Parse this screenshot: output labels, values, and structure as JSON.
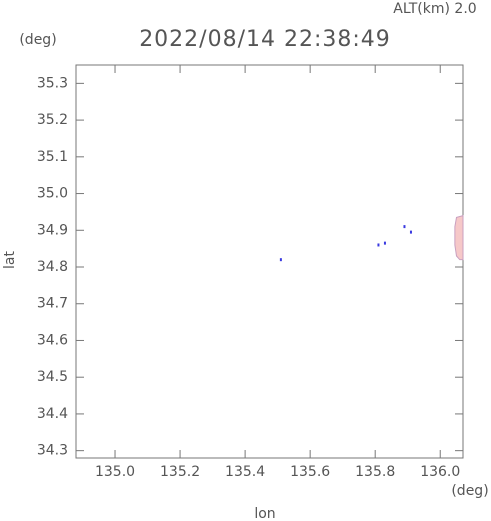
{
  "chart_data": {
    "type": "scatter",
    "title": "2022/08/14 22:38:49",
    "subtitle": "ALT(km) 2.0",
    "x_label": "lon",
    "y_label": "lat",
    "x_unit": "(deg)",
    "y_unit": "(deg)",
    "xlim": [
      134.88,
      136.07
    ],
    "ylim": [
      34.28,
      35.35
    ],
    "xticks": [
      {
        "value": 135.0,
        "label": "135.0"
      },
      135.2,
      135.4,
      135.6,
      135.8,
      {
        "value": 136.0,
        "label": "136.0"
      }
    ],
    "yticks": [
      35.3,
      35.2,
      35.1,
      {
        "value": 35.0,
        "label": "35.0"
      },
      34.9,
      34.8,
      34.7,
      34.6,
      34.5,
      34.4,
      34.3
    ],
    "series": [
      {
        "color": "#3a3ae0",
        "x": [
          135.51,
          135.81,
          135.83,
          135.89,
          135.91
        ],
        "values": [
          34.82,
          34.86,
          34.865,
          34.91,
          34.895
        ]
      }
    ],
    "region": {
      "color": "#f6c8c8",
      "edge": "#c9a0c0",
      "x": [
        136.07,
        136.05,
        136.045,
        136.045,
        136.05,
        136.06,
        136.07
      ],
      "values": [
        34.94,
        34.935,
        34.91,
        34.86,
        34.83,
        34.82,
        34.82
      ]
    }
  }
}
